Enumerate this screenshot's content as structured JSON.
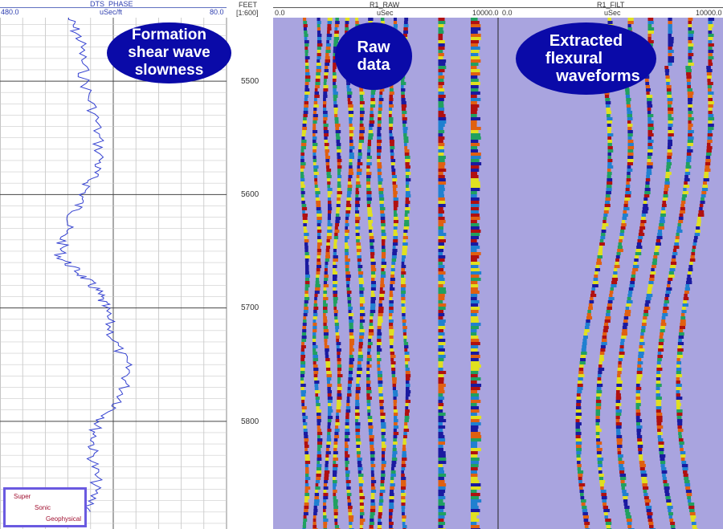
{
  "tracks": {
    "left": {
      "name": "DTS_PHASE",
      "unit": "uSec/ft",
      "min_label": "480.0",
      "max_label": "80.0"
    },
    "depth": {
      "unit": "FEET",
      "scale": "[1:600]",
      "labels": [
        "5500",
        "5600",
        "5700",
        "5800"
      ]
    },
    "raw": {
      "name": "R1_RAW",
      "unit": "uSec",
      "min_label": "0.0",
      "max_label": "10000.0"
    },
    "filt": {
      "name": "R1_FILT",
      "unit": "uSec",
      "min_label": "0.0",
      "max_label": "10000.0"
    }
  },
  "annotations": {
    "shear": [
      "Formation",
      "shear wave",
      "slowness"
    ],
    "raw": [
      "Raw",
      "data"
    ],
    "filt": [
      "Extracted",
      "flexural",
      "waveforms"
    ]
  },
  "logo": {
    "line1": "Super",
    "line2": "Sonic",
    "line3": "Geophysical"
  },
  "colors": {
    "curve": "#3340d0",
    "wave_bg": "#a9a4df",
    "bubble": "#0a0aa8"
  },
  "chart_data": {
    "type": "line",
    "x_label": "DTS_PHASE (uSec/ft)",
    "xlim": [
      480,
      80
    ],
    "ylim": [
      5444,
      5895
    ],
    "y_label": "FEET",
    "y_ticks": [
      5500,
      5600,
      5700,
      5800
    ],
    "grid": true,
    "series": [
      {
        "name": "DTS_PHASE",
        "depth": [
          5444,
          5464,
          5499,
          5535,
          5570,
          5591,
          5613,
          5634,
          5655,
          5670,
          5684,
          5698,
          5726,
          5755,
          5783,
          5804,
          5826,
          5854,
          5882
        ],
        "values": [
          359,
          338,
          331,
          310,
          303,
          324,
          345,
          367,
          374,
          338,
          310,
          296,
          281,
          253,
          267,
          310,
          317,
          310,
          324
        ]
      }
    ]
  }
}
